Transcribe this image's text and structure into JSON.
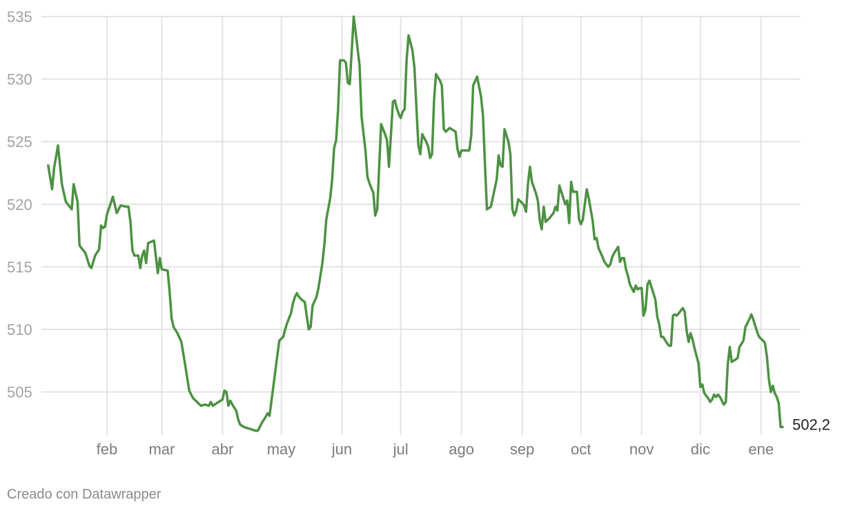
{
  "chart_data": {
    "type": "line",
    "title": "",
    "xlabel": "",
    "ylabel": "",
    "ylim": [
      502,
      535
    ],
    "yticks": [
      505,
      510,
      515,
      520,
      525,
      530,
      535
    ],
    "ytick_labels": [
      "505",
      "510",
      "515",
      "520",
      "525",
      "530",
      "535"
    ],
    "xticks": [
      {
        "label": "feb",
        "day": 31
      },
      {
        "label": "mar",
        "day": 59
      },
      {
        "label": "abr",
        "day": 90
      },
      {
        "label": "may",
        "day": 120
      },
      {
        "label": "jun",
        "day": 151
      },
      {
        "label": "jul",
        "day": 181
      },
      {
        "label": "ago",
        "day": 212
      },
      {
        "label": "sep",
        "day": 243
      },
      {
        "label": "oct",
        "day": 273
      },
      {
        "label": "nov",
        "day": 304
      },
      {
        "label": "dic",
        "day": 334
      },
      {
        "label": "ene",
        "day": 365
      }
    ],
    "xlim": [
      0,
      382
    ],
    "grid": true,
    "line_color": "#4d9143",
    "end_label": "502,2",
    "series": [
      {
        "values": [
          [
            1,
            523.1
          ],
          [
            3,
            521.2
          ],
          [
            4,
            522.9
          ],
          [
            6,
            524.7
          ],
          [
            8,
            521.6
          ],
          [
            10,
            520.2
          ],
          [
            13,
            519.6
          ],
          [
            14,
            521.6
          ],
          [
            16,
            520.2
          ],
          [
            17,
            516.7
          ],
          [
            20,
            516.1
          ],
          [
            22,
            515.1
          ],
          [
            23,
            514.9
          ],
          [
            25,
            515.9
          ],
          [
            27,
            516.4
          ],
          [
            28,
            518.3
          ],
          [
            29,
            518.1
          ],
          [
            30,
            518.2
          ],
          [
            31,
            519.2
          ],
          [
            33,
            520.1
          ],
          [
            34,
            520.6
          ],
          [
            36,
            519.3
          ],
          [
            38,
            519.9
          ],
          [
            41,
            519.8
          ],
          [
            42,
            519.8
          ],
          [
            43,
            518.6
          ],
          [
            44,
            516.3
          ],
          [
            45,
            515.9
          ],
          [
            47,
            515.9
          ],
          [
            48,
            514.9
          ],
          [
            49,
            515.9
          ],
          [
            50,
            516.3
          ],
          [
            51,
            515.3
          ],
          [
            52,
            516.9
          ],
          [
            55,
            517.1
          ],
          [
            57,
            514.5
          ],
          [
            58,
            515.7
          ],
          [
            59,
            514.8
          ],
          [
            62,
            514.7
          ],
          [
            63,
            513.0
          ],
          [
            64,
            510.9
          ],
          [
            65,
            510.2
          ],
          [
            67,
            509.7
          ],
          [
            69,
            509.0
          ],
          [
            71,
            507.1
          ],
          [
            73,
            505.1
          ],
          [
            75,
            504.5
          ],
          [
            77,
            504.2
          ],
          [
            79,
            503.9
          ],
          [
            81,
            504.0
          ],
          [
            83,
            503.9
          ],
          [
            84,
            504.2
          ],
          [
            85,
            503.9
          ],
          [
            88,
            504.2
          ],
          [
            90,
            504.4
          ],
          [
            91,
            505.1
          ],
          [
            92,
            505.0
          ],
          [
            93,
            503.9
          ],
          [
            94,
            504.3
          ],
          [
            95,
            504.0
          ],
          [
            97,
            503.5
          ],
          [
            98,
            502.8
          ],
          [
            99,
            502.4
          ],
          [
            101,
            502.2
          ],
          [
            103,
            502.1
          ],
          [
            105,
            502.0
          ],
          [
            107,
            501.9
          ],
          [
            108,
            501.9
          ],
          [
            110,
            502.5
          ],
          [
            112,
            503.0
          ],
          [
            113,
            503.3
          ],
          [
            114,
            503.1
          ],
          [
            116,
            505.5
          ],
          [
            118,
            507.9
          ],
          [
            119,
            509.1
          ],
          [
            121,
            509.4
          ],
          [
            122,
            510.0
          ],
          [
            123,
            510.5
          ],
          [
            125,
            511.3
          ],
          [
            126,
            512.1
          ],
          [
            127,
            512.6
          ],
          [
            128,
            512.9
          ],
          [
            129,
            512.6
          ],
          [
            131,
            512.3
          ],
          [
            132,
            512.2
          ],
          [
            133,
            511.1
          ],
          [
            134,
            510.0
          ],
          [
            135,
            510.2
          ],
          [
            136,
            511.9
          ],
          [
            138,
            512.6
          ],
          [
            139,
            513.3
          ],
          [
            141,
            515.3
          ],
          [
            142,
            516.8
          ],
          [
            143,
            518.8
          ],
          [
            145,
            520.5
          ],
          [
            146,
            522.0
          ],
          [
            147,
            524.5
          ],
          [
            148,
            525.1
          ],
          [
            149,
            527.5
          ],
          [
            150,
            531.5
          ],
          [
            152,
            531.5
          ],
          [
            153,
            531.3
          ],
          [
            154,
            529.7
          ],
          [
            155,
            529.6
          ],
          [
            157,
            535.0
          ],
          [
            158,
            533.7
          ],
          [
            160,
            531.1
          ],
          [
            161,
            527.0
          ],
          [
            163,
            524.3
          ],
          [
            164,
            522.2
          ],
          [
            165,
            521.7
          ],
          [
            167,
            520.9
          ],
          [
            168,
            519.1
          ],
          [
            169,
            519.6
          ],
          [
            170,
            523.0
          ],
          [
            171,
            526.4
          ],
          [
            173,
            525.6
          ],
          [
            174,
            525.1
          ],
          [
            175,
            523.0
          ],
          [
            176,
            525.5
          ],
          [
            177,
            528.2
          ],
          [
            178,
            528.3
          ],
          [
            179,
            527.7
          ],
          [
            180,
            527.2
          ],
          [
            181,
            526.9
          ],
          [
            182,
            527.4
          ],
          [
            183,
            527.6
          ],
          [
            184,
            531.5
          ],
          [
            185,
            533.5
          ],
          [
            187,
            532.3
          ],
          [
            188,
            530.9
          ],
          [
            189,
            527.8
          ],
          [
            190,
            524.7
          ],
          [
            191,
            524.0
          ],
          [
            192,
            525.6
          ],
          [
            194,
            525.0
          ],
          [
            195,
            524.6
          ],
          [
            196,
            523.7
          ],
          [
            197,
            524.0
          ],
          [
            198,
            528.3
          ],
          [
            199,
            530.4
          ],
          [
            201,
            529.9
          ],
          [
            202,
            529.5
          ],
          [
            203,
            526.0
          ],
          [
            204,
            525.8
          ],
          [
            206,
            526.1
          ],
          [
            207,
            526.0
          ],
          [
            209,
            525.8
          ],
          [
            210,
            524.4
          ],
          [
            211,
            523.8
          ],
          [
            212,
            524.3
          ],
          [
            215,
            524.3
          ],
          [
            216,
            524.3
          ],
          [
            217,
            525.5
          ],
          [
            218,
            529.5
          ],
          [
            220,
            530.2
          ],
          [
            222,
            528.6
          ],
          [
            223,
            527.1
          ],
          [
            224,
            523.3
          ],
          [
            225,
            519.6
          ],
          [
            227,
            519.8
          ],
          [
            230,
            522.0
          ],
          [
            231,
            523.9
          ],
          [
            232,
            523.1
          ],
          [
            233,
            523.0
          ],
          [
            234,
            526.0
          ],
          [
            236,
            525.0
          ],
          [
            237,
            524.0
          ],
          [
            238,
            519.6
          ],
          [
            239,
            519.1
          ],
          [
            240,
            519.5
          ],
          [
            241,
            520.4
          ],
          [
            243,
            520.1
          ],
          [
            244,
            519.9
          ],
          [
            245,
            519.4
          ],
          [
            246,
            521.7
          ],
          [
            247,
            523.0
          ],
          [
            248,
            521.8
          ],
          [
            250,
            520.9
          ],
          [
            251,
            520.3
          ],
          [
            252,
            518.7
          ],
          [
            253,
            518.0
          ],
          [
            254,
            519.8
          ],
          [
            255,
            518.6
          ],
          [
            257,
            518.9
          ],
          [
            258,
            519.1
          ],
          [
            259,
            519.3
          ],
          [
            260,
            519.8
          ],
          [
            261,
            519.5
          ],
          [
            262,
            521.5
          ],
          [
            264,
            520.5
          ],
          [
            265,
            520.0
          ],
          [
            266,
            520.3
          ],
          [
            267,
            518.5
          ],
          [
            268,
            521.8
          ],
          [
            269,
            521.0
          ],
          [
            271,
            521.0
          ],
          [
            272,
            518.8
          ],
          [
            273,
            518.4
          ],
          [
            274,
            518.8
          ],
          [
            276,
            521.2
          ],
          [
            277,
            520.5
          ],
          [
            279,
            518.7
          ],
          [
            280,
            517.2
          ],
          [
            281,
            517.3
          ],
          [
            282,
            516.5
          ],
          [
            284,
            515.8
          ],
          [
            285,
            515.4
          ],
          [
            287,
            515.0
          ],
          [
            288,
            515.2
          ],
          [
            289,
            515.8
          ],
          [
            290,
            516.1
          ],
          [
            292,
            516.6
          ],
          [
            293,
            515.4
          ],
          [
            294,
            515.7
          ],
          [
            295,
            515.7
          ],
          [
            296,
            514.8
          ],
          [
            297,
            514.3
          ],
          [
            298,
            513.6
          ],
          [
            300,
            513.0
          ],
          [
            301,
            513.5
          ],
          [
            302,
            513.2
          ],
          [
            303,
            513.3
          ],
          [
            304,
            513.3
          ],
          [
            305,
            511.1
          ],
          [
            306,
            511.6
          ],
          [
            307,
            513.6
          ],
          [
            308,
            513.9
          ],
          [
            309,
            513.4
          ],
          [
            310,
            512.9
          ],
          [
            311,
            512.4
          ],
          [
            312,
            511.0
          ],
          [
            313,
            510.4
          ],
          [
            314,
            509.4
          ],
          [
            315,
            509.4
          ],
          [
            317,
            508.9
          ],
          [
            318,
            508.7
          ],
          [
            319,
            508.7
          ],
          [
            320,
            511.1
          ],
          [
            321,
            511.2
          ],
          [
            322,
            511.1
          ],
          [
            324,
            511.5
          ],
          [
            325,
            511.7
          ],
          [
            326,
            511.4
          ],
          [
            327,
            509.9
          ],
          [
            328,
            509.0
          ],
          [
            329,
            509.7
          ],
          [
            330,
            509.2
          ],
          [
            331,
            508.5
          ],
          [
            333,
            507.3
          ],
          [
            334,
            505.4
          ],
          [
            335,
            505.6
          ],
          [
            336,
            504.9
          ],
          [
            338,
            504.5
          ],
          [
            339,
            504.2
          ],
          [
            340,
            504.4
          ],
          [
            341,
            504.8
          ],
          [
            342,
            504.6
          ],
          [
            343,
            504.8
          ],
          [
            344,
            504.6
          ],
          [
            345,
            504.3
          ],
          [
            346,
            504.0
          ],
          [
            347,
            504.2
          ],
          [
            348,
            507.2
          ],
          [
            349,
            508.6
          ],
          [
            350,
            507.4
          ],
          [
            352,
            507.6
          ],
          [
            353,
            507.7
          ],
          [
            354,
            508.6
          ],
          [
            356,
            509.1
          ],
          [
            357,
            510.2
          ],
          [
            359,
            510.8
          ],
          [
            360,
            511.2
          ],
          [
            361,
            510.8
          ],
          [
            362,
            510.3
          ],
          [
            363,
            509.8
          ],
          [
            364,
            509.4
          ],
          [
            366,
            509.1
          ],
          [
            367,
            508.9
          ],
          [
            368,
            507.8
          ],
          [
            369,
            506.0
          ],
          [
            370,
            505.0
          ],
          [
            371,
            505.5
          ],
          [
            372,
            504.9
          ],
          [
            373,
            504.6
          ],
          [
            374,
            504.1
          ],
          [
            375,
            502.2
          ],
          [
            376,
            502.2
          ]
        ]
      }
    ],
    "credit": "Creado con Datawrapper"
  }
}
